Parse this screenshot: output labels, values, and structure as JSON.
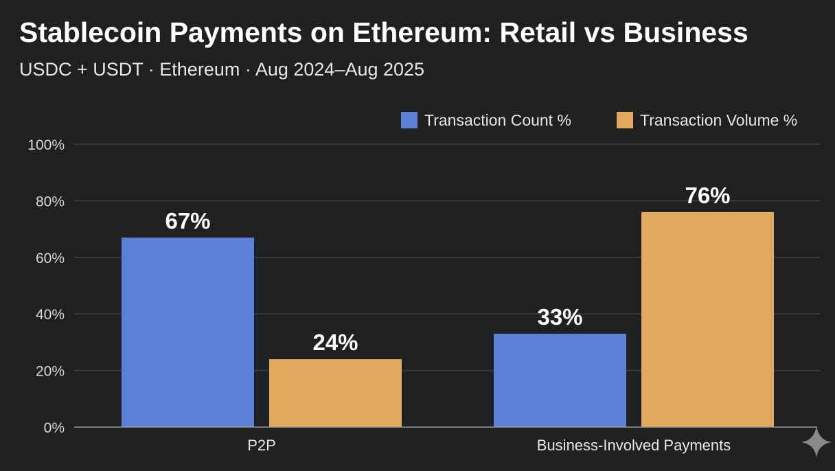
{
  "chart_data": {
    "type": "bar",
    "title": "Stablecoin Payments on Ethereum: Retail vs Business",
    "subtitle": "USDC + USDT · Ethereum · Aug 2024–Aug 2025",
    "categories": [
      "P2P",
      "Business-Involved Payments"
    ],
    "series": [
      {
        "name": "Transaction Count %",
        "values": [
          67,
          33
        ],
        "labels": [
          "67%",
          "33%"
        ],
        "color": "#5b80d6"
      },
      {
        "name": "Transaction Volume %",
        "values": [
          24,
          76
        ],
        "labels": [
          "24%",
          "76%"
        ],
        "color": "#e2a85b"
      }
    ],
    "ylim": [
      0,
      100
    ],
    "yticks": [
      0,
      20,
      40,
      60,
      80,
      100
    ],
    "ytick_labels": [
      "0%",
      "20%",
      "40%",
      "60%",
      "80%",
      "100%"
    ],
    "xlabel": "",
    "ylabel": "",
    "grid": true,
    "legend_position": "top-right",
    "background": "#1f2022",
    "watermark_icon": "sparkle-icon"
  }
}
